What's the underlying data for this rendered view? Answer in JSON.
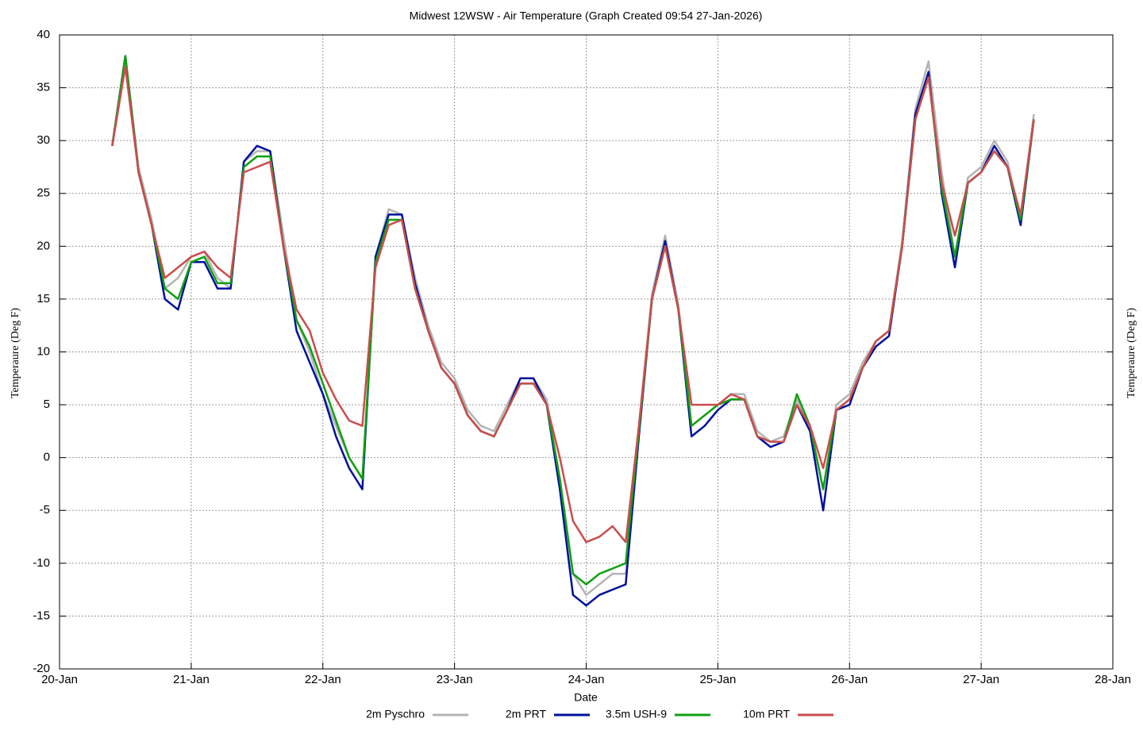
{
  "chart_data": {
    "type": "line",
    "title": "Midwest 12WSW - Air Temperature (Graph Created 09:54 27-Jan-2026)",
    "x_label": "Date",
    "y_label": "Temperaure (Deg F)",
    "x": [
      0.4,
      0.5,
      0.6,
      0.7,
      0.8,
      0.9,
      1.0,
      1.1,
      1.2,
      1.3,
      1.4,
      1.5,
      1.6,
      1.7,
      1.8,
      1.9,
      2.0,
      2.1,
      2.2,
      2.3,
      2.4,
      2.5,
      2.6,
      2.7,
      2.8,
      2.9,
      3.0,
      3.1,
      3.2,
      3.3,
      3.4,
      3.5,
      3.6,
      3.7,
      3.8,
      3.9,
      4.0,
      4.1,
      4.2,
      4.3,
      4.4,
      4.5,
      4.6,
      4.7,
      4.8,
      4.9,
      5.0,
      5.1,
      5.2,
      5.3,
      5.4,
      5.5,
      5.6,
      5.7,
      5.8,
      5.9,
      6.0,
      6.1,
      6.2,
      6.3,
      6.4,
      6.5,
      6.6,
      6.7,
      6.8,
      6.9,
      7.0,
      7.1,
      7.2,
      7.3,
      7.4
    ],
    "series": [
      {
        "name": "2m Pyschro",
        "color": "#b4b4b4",
        "values": [
          29.5,
          38,
          27.5,
          22.5,
          16,
          17,
          19,
          19.5,
          17,
          16,
          28,
          29,
          29,
          21,
          13,
          10,
          6,
          3,
          0,
          -2,
          19,
          23.5,
          23,
          17,
          12.5,
          9,
          7.5,
          4.5,
          3,
          2.5,
          5,
          7.5,
          7.5,
          5.5,
          -2,
          -11,
          -13,
          -12,
          -11,
          -11,
          3,
          15.5,
          21,
          14.5,
          3,
          4,
          5,
          6,
          6,
          2.5,
          1.5,
          2,
          5.5,
          3,
          -3,
          5,
          6,
          9,
          11,
          12,
          20.5,
          33,
          37.5,
          27,
          19,
          26.5,
          27.5,
          30,
          28,
          22.5,
          32.5
        ]
      },
      {
        "name": "2m PRT",
        "color": "#00109c",
        "values": [
          29.5,
          38,
          27,
          22,
          15,
          14,
          18.5,
          18.5,
          16,
          16,
          28,
          29.5,
          29,
          20,
          12,
          9,
          6,
          2,
          -1,
          -3,
          19,
          23,
          23,
          16.5,
          12,
          8.5,
          7,
          4,
          2.5,
          2,
          4.5,
          7.5,
          7.5,
          5,
          -3,
          -13,
          -14,
          -13,
          -12.5,
          -12,
          2,
          15,
          20.5,
          14,
          2,
          3,
          4.5,
          5.5,
          5.5,
          2,
          1,
          1.5,
          5,
          2.5,
          -5,
          4.5,
          5,
          8.5,
          10.5,
          11.5,
          20,
          32.5,
          36.5,
          25,
          18,
          26,
          27,
          29.5,
          27.5,
          22,
          32
        ]
      },
      {
        "name": "3.5m USH-9",
        "color": "#10a010",
        "values": [
          29.5,
          38,
          27,
          22,
          16,
          15,
          18.5,
          19,
          16.5,
          16.5,
          27.5,
          28.5,
          28.5,
          20,
          13,
          10.5,
          7,
          3.5,
          0,
          -2,
          18.5,
          22.5,
          22.5,
          16,
          12,
          8.5,
          7,
          4,
          2.5,
          2,
          4.5,
          7,
          7,
          5,
          -2,
          -11,
          -12,
          -11,
          -10.5,
          -10,
          2.5,
          15,
          20,
          14,
          3,
          4,
          5,
          5.5,
          5.5,
          2,
          1.5,
          1.5,
          6,
          3,
          -3,
          4.5,
          5.5,
          8.5,
          11,
          12,
          20,
          32,
          36,
          25.5,
          19,
          26,
          27,
          29,
          27.5,
          22.5,
          32
        ]
      },
      {
        "name": "10m PRT",
        "color": "#cc4c4c",
        "values": [
          29.5,
          37,
          27,
          22,
          17,
          18,
          19,
          19.5,
          18,
          17,
          27,
          27.5,
          28,
          20,
          14,
          12,
          8,
          5.5,
          3.5,
          3,
          18,
          22,
          22.5,
          16,
          12,
          8.5,
          7,
          4,
          2.5,
          2,
          4.5,
          7,
          7,
          5,
          0,
          -6,
          -8,
          -7.5,
          -6.5,
          -8,
          3,
          15,
          20,
          14,
          5,
          5,
          5,
          6,
          5.5,
          2,
          1.5,
          1.5,
          5,
          3,
          -1,
          4.5,
          5.5,
          8.5,
          11,
          12,
          20,
          32,
          36,
          26,
          21,
          26,
          27,
          29,
          27.5,
          23,
          32
        ]
      }
    ],
    "xlim": [
      0,
      8
    ],
    "xticks": [
      {
        "value": 0,
        "label": "20-Jan"
      },
      {
        "value": 1,
        "label": "21-Jan"
      },
      {
        "value": 2,
        "label": "22-Jan"
      },
      {
        "value": 3,
        "label": "23-Jan"
      },
      {
        "value": 4,
        "label": "24-Jan"
      },
      {
        "value": 5,
        "label": "25-Jan"
      },
      {
        "value": 6,
        "label": "26-Jan"
      },
      {
        "value": 7,
        "label": "27-Jan"
      },
      {
        "value": 8,
        "label": "28-Jan"
      }
    ],
    "ylim": [
      -20,
      40
    ],
    "yticks": [
      -20,
      -15,
      -10,
      -5,
      0,
      5,
      10,
      15,
      20,
      25,
      30,
      35,
      40
    ],
    "grid": true,
    "legend": "bottom"
  }
}
